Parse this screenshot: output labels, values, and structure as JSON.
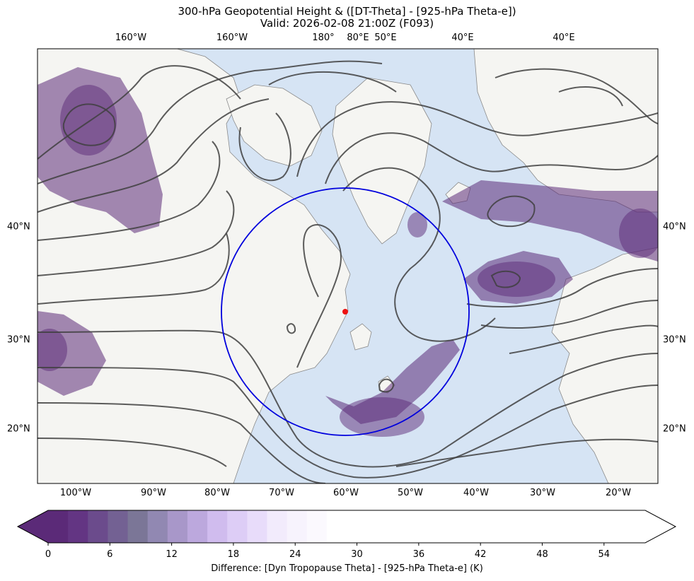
{
  "title": {
    "line1": "300-hPa Geopotential Height & ([DT-Theta] - [925-hPa Theta-e])",
    "line2": "Valid: 2026-02-08 21:00Z (F093)"
  },
  "map": {
    "top_labels": [
      "160°W",
      "160°W",
      "180°",
      "80°E",
      "50°E",
      "40°E",
      "40°E"
    ],
    "bottom_labels": [
      "100°W",
      "90°W",
      "80°W",
      "70°W",
      "60°W",
      "50°W",
      "40°W",
      "30°W",
      "20°W"
    ],
    "left_labels": [
      "40°N",
      "30°N",
      "20°N"
    ],
    "right_labels": [
      "40°N",
      "30°N",
      "20°N"
    ],
    "colors": {
      "ocean": "#d6e4f4",
      "land": "#f5f5f2",
      "coast": "#8a8a8a",
      "contour": "#404040",
      "circle": "#0000dd",
      "point": "#ee1111"
    },
    "features": [
      "blue-circle",
      "red-point"
    ]
  },
  "colorbar": {
    "ticks": [
      "0",
      "6",
      "12",
      "18",
      "24",
      "30",
      "36",
      "42",
      "48",
      "54"
    ],
    "label": "Difference: [Dyn Tropopause Theta] - [925-hPa Theta-e] (K)",
    "colors": [
      "#5b2a78",
      "#633583",
      "#6b4b8c",
      "#736193",
      "#7b7697",
      "#9188b2",
      "#a897c9",
      "#bca8dd",
      "#d0bcee",
      "#ddcdf6",
      "#e8dcfa",
      "#f2ebfc",
      "#f7f3fd",
      "#fbf9fe",
      "#ffffff",
      "#ffffff",
      "#ffffff",
      "#ffffff",
      "#ffffff",
      "#ffffff",
      "#ffffff",
      "#ffffff",
      "#ffffff",
      "#ffffff",
      "#ffffff",
      "#ffffff",
      "#ffffff",
      "#ffffff",
      "#ffffff",
      "#ffffff"
    ],
    "min": 0,
    "max": 58,
    "step": 2
  }
}
